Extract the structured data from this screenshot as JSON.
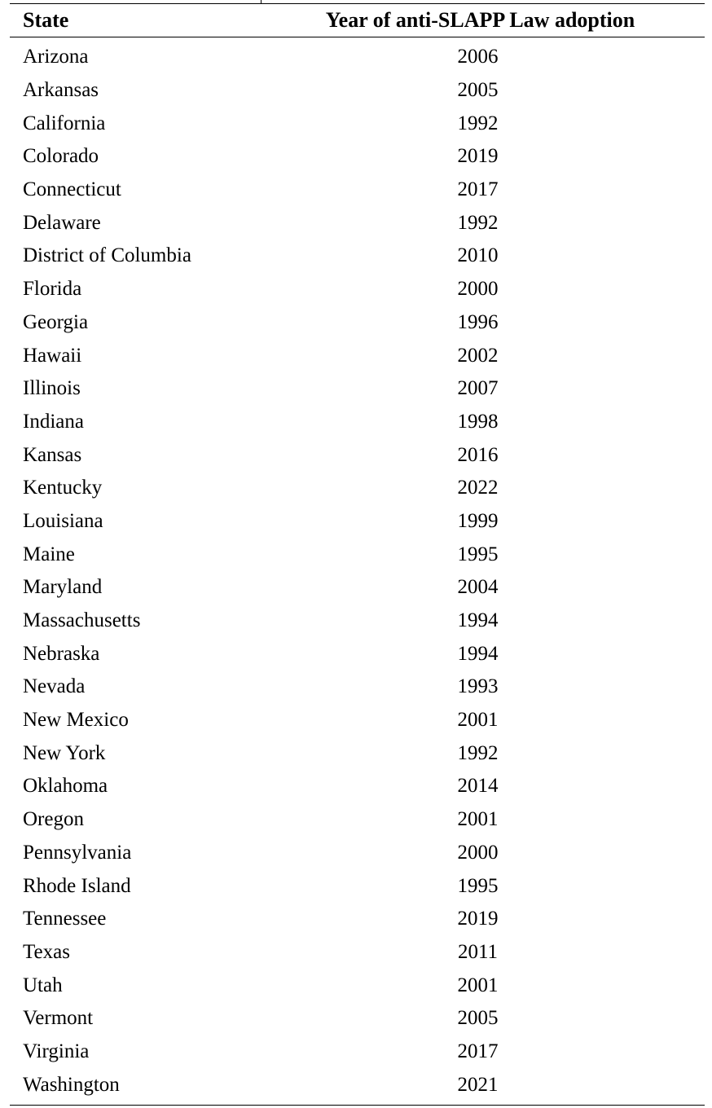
{
  "table": {
    "headers": {
      "state": "State",
      "year": "Year of anti-SLAPP Law adoption"
    },
    "rows": [
      {
        "state": "Arizona",
        "year": "2006"
      },
      {
        "state": "Arkansas",
        "year": "2005"
      },
      {
        "state": "California",
        "year": "1992"
      },
      {
        "state": "Colorado",
        "year": "2019"
      },
      {
        "state": "Connecticut",
        "year": "2017"
      },
      {
        "state": "Delaware",
        "year": "1992"
      },
      {
        "state": "District of Columbia",
        "year": "2010"
      },
      {
        "state": "Florida",
        "year": "2000"
      },
      {
        "state": "Georgia",
        "year": "1996"
      },
      {
        "state": "Hawaii",
        "year": "2002"
      },
      {
        "state": "Illinois",
        "year": "2007"
      },
      {
        "state": "Indiana",
        "year": "1998"
      },
      {
        "state": "Kansas",
        "year": "2016"
      },
      {
        "state": "Kentucky",
        "year": "2022"
      },
      {
        "state": "Louisiana",
        "year": "1999"
      },
      {
        "state": "Maine",
        "year": "1995"
      },
      {
        "state": "Maryland",
        "year": "2004"
      },
      {
        "state": "Massachusetts",
        "year": "1994"
      },
      {
        "state": "Nebraska",
        "year": "1994"
      },
      {
        "state": "Nevada",
        "year": "1993"
      },
      {
        "state": "New Mexico",
        "year": "2001"
      },
      {
        "state": "New York",
        "year": "1992"
      },
      {
        "state": "Oklahoma",
        "year": "2014"
      },
      {
        "state": "Oregon",
        "year": "2001"
      },
      {
        "state": "Pennsylvania",
        "year": "2000"
      },
      {
        "state": "Rhode Island",
        "year": "1995"
      },
      {
        "state": "Tennessee",
        "year": "2019"
      },
      {
        "state": "Texas",
        "year": "2011"
      },
      {
        "state": "Utah",
        "year": "2001"
      },
      {
        "state": "Vermont",
        "year": "2005"
      },
      {
        "state": "Virginia",
        "year": "2017"
      },
      {
        "state": "Washington",
        "year": "2021"
      }
    ]
  }
}
